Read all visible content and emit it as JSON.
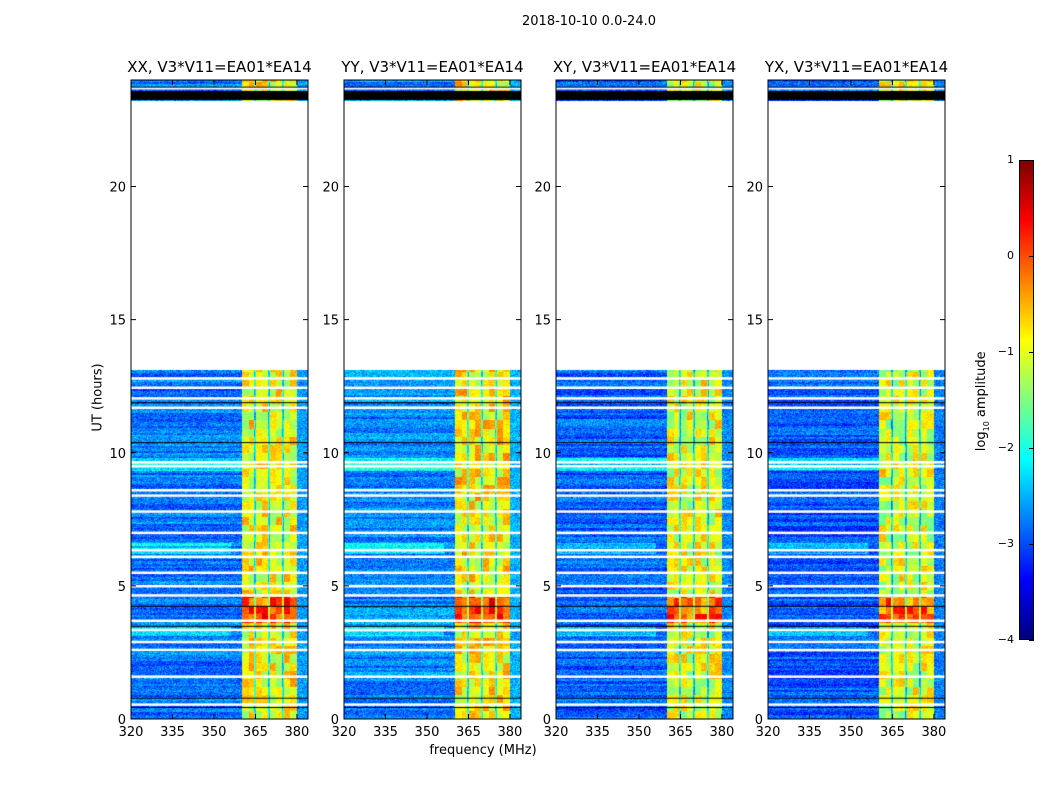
{
  "figure": {
    "suptitle": "2018-10-10 0.0-24.0",
    "xlabel": "frequency (MHz)",
    "ylabel": "UT (hours)"
  },
  "colorbar": {
    "label_prefix": "log",
    "label_sub": "10",
    "label_suffix": " amplitude",
    "range": [
      -4,
      1
    ],
    "ticks": [
      -4,
      -3,
      -2,
      -1,
      0,
      1
    ],
    "tick_labels": [
      "−4",
      "−3",
      "−2",
      "−1",
      "0",
      "1"
    ],
    "colormap": "jet"
  },
  "chart_data": [
    {
      "type": "heatmap",
      "title": "XX, V3*V11=EA01*EA14",
      "xlim": [
        320,
        384
      ],
      "ylim": [
        0,
        24
      ],
      "xticks": [
        320,
        335,
        350,
        365,
        380
      ],
      "xtick_labels": [
        "320",
        "335",
        "350",
        "365",
        "380"
      ],
      "yticks": [
        0,
        5,
        10,
        15,
        20
      ],
      "ytick_labels": [
        "0",
        "5",
        "10",
        "15",
        "20"
      ],
      "background_level": -2.8,
      "band_level": -0.9
    },
    {
      "type": "heatmap",
      "title": "YY, V3*V11=EA01*EA14",
      "xlim": [
        320,
        384
      ],
      "ylim": [
        0,
        24
      ],
      "xticks": [
        320,
        335,
        350,
        365,
        380
      ],
      "xtick_labels": [
        "320",
        "335",
        "350",
        "365",
        "380"
      ],
      "yticks": [
        0,
        5,
        10,
        15,
        20
      ],
      "ytick_labels": [
        "0",
        "5",
        "10",
        "15",
        "20"
      ],
      "background_level": -2.7,
      "band_level": -0.8
    },
    {
      "type": "heatmap",
      "title": "XY, V3*V11=EA01*EA14",
      "xlim": [
        320,
        384
      ],
      "ylim": [
        0,
        24
      ],
      "xticks": [
        320,
        335,
        350,
        365,
        380
      ],
      "xtick_labels": [
        "320",
        "335",
        "350",
        "365",
        "380"
      ],
      "yticks": [
        0,
        5,
        10,
        15,
        20
      ],
      "ytick_labels": [
        "0",
        "5",
        "10",
        "15",
        "20"
      ],
      "background_level": -2.9,
      "band_level": -1.0
    },
    {
      "type": "heatmap",
      "title": "YX, V3*V11=EA01*EA14",
      "xlim": [
        320,
        384
      ],
      "ylim": [
        0,
        24
      ],
      "xticks": [
        320,
        335,
        350,
        365,
        380
      ],
      "xtick_labels": [
        "320",
        "335",
        "350",
        "365",
        "380"
      ],
      "yticks": [
        0,
        5,
        10,
        15,
        20
      ],
      "ytick_labels": [
        "0",
        "5",
        "10",
        "15",
        "20"
      ],
      "background_level": -2.95,
      "band_level": -1.05
    }
  ],
  "data_features": {
    "no_data_hours": [
      13.1,
      23.2
    ],
    "black_flag_bands_hours": [
      [
        23.25,
        23.6
      ]
    ],
    "bright_band_mhz": [
      360,
      380
    ],
    "subband_edges_mhz": [
      365,
      370,
      375
    ],
    "strong_rfi_hours": [
      3.6,
      4.6
    ],
    "white_flag_hours": [
      0.55,
      1.6,
      2.6,
      2.9,
      3.35,
      3.7,
      4.65,
      5.0,
      5.5,
      6.1,
      6.35,
      7.0,
      7.8,
      8.4,
      8.6,
      9.5,
      9.65,
      11.7,
      12.05,
      12.45,
      12.8,
      23.7
    ],
    "black_flag_hours": [
      0.45,
      0.8,
      3.5,
      4.25,
      10.4,
      11.9,
      23.75
    ]
  }
}
